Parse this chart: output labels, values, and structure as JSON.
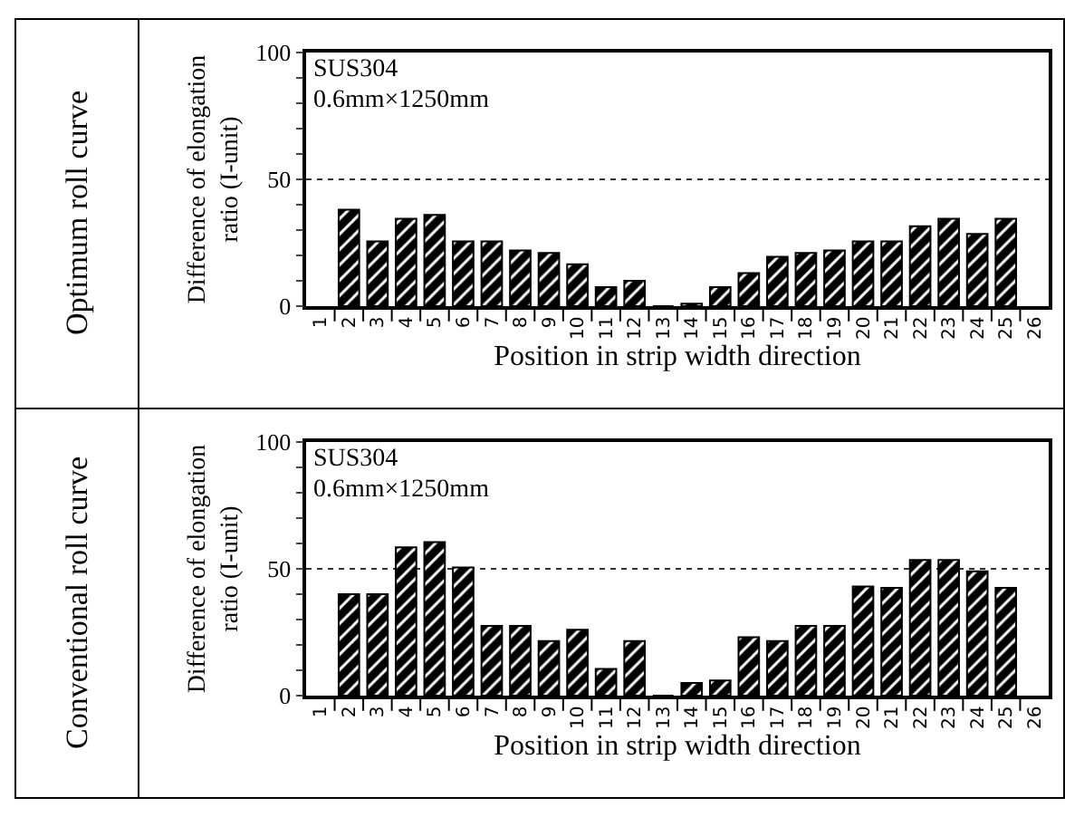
{
  "chart_data": [
    {
      "type": "bar",
      "title": "Optimum roll curve",
      "ylabel": "Difference of elongation ratio (I-unit)",
      "xlabel": "Position in strip width direction",
      "categories": [
        "1",
        "2",
        "3",
        "4",
        "5",
        "6",
        "7",
        "8",
        "9",
        "10",
        "11",
        "12",
        "13",
        "14",
        "15",
        "16",
        "17",
        "18",
        "19",
        "20",
        "21",
        "22",
        "23",
        "24",
        "25",
        "26"
      ],
      "values": [
        null,
        38,
        25.5,
        34.5,
        36,
        25.5,
        25.5,
        22,
        21,
        16.5,
        7.5,
        10,
        0,
        1,
        7.5,
        13,
        19.5,
        21,
        22,
        25.5,
        25.5,
        31.5,
        34.5,
        28.5,
        34.5,
        null
      ],
      "color": "#000000",
      "ylim": [
        0,
        100
      ],
      "yticks": [
        0,
        {
          "value": 10,
          "label": null
        },
        {
          "value": 20,
          "label": null
        },
        {
          "value": 30,
          "label": null
        },
        {
          "value": 40,
          "label": null
        },
        50,
        {
          "value": 60,
          "label": null
        },
        {
          "value": 70,
          "label": null
        },
        {
          "value": 80,
          "label": null
        },
        {
          "value": 90,
          "label": null
        },
        100
      ],
      "ref_lines": [
        {
          "axis": "y",
          "value": 50,
          "line_style": "dotted",
          "color": "#333333"
        }
      ],
      "annotations": [
        "SUS304",
        "0.6mm×1250mm"
      ]
    },
    {
      "type": "bar",
      "title": "Conventional roll curve",
      "ylabel": "Difference of elongation ratio (I-unit)",
      "xlabel": "Position in strip width direction",
      "categories": [
        "1",
        "2",
        "3",
        "4",
        "5",
        "6",
        "7",
        "8",
        "9",
        "10",
        "11",
        "12",
        "13",
        "14",
        "15",
        "16",
        "17",
        "18",
        "19",
        "20",
        "21",
        "22",
        "23",
        "24",
        "25",
        "26"
      ],
      "values": [
        null,
        40,
        40,
        58.5,
        60.5,
        50.5,
        27.5,
        27.5,
        21.5,
        26,
        10.5,
        21.5,
        0,
        5,
        6,
        23,
        21.5,
        27.5,
        27.5,
        43,
        42.5,
        53.5,
        53.5,
        49,
        42.5,
        null
      ],
      "color": "#000000",
      "ylim": [
        0,
        100
      ],
      "yticks": [
        0,
        {
          "value": 10,
          "label": null
        },
        {
          "value": 20,
          "label": null
        },
        {
          "value": 30,
          "label": null
        },
        {
          "value": 40,
          "label": null
        },
        50,
        {
          "value": 60,
          "label": null
        },
        {
          "value": 70,
          "label": null
        },
        {
          "value": 80,
          "label": null
        },
        {
          "value": 90,
          "label": null
        },
        100
      ],
      "ref_lines": [
        {
          "axis": "y",
          "value": 50,
          "line_style": "dotted",
          "color": "#333333"
        }
      ],
      "annotations": [
        "SUS304",
        "0.6mm×1250mm"
      ]
    }
  ]
}
